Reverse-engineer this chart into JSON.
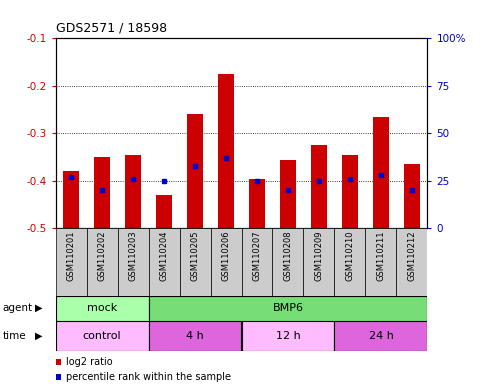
{
  "title": "GDS2571 / 18598",
  "samples": [
    "GSM110201",
    "GSM110202",
    "GSM110203",
    "GSM110204",
    "GSM110205",
    "GSM110206",
    "GSM110207",
    "GSM110208",
    "GSM110209",
    "GSM110210",
    "GSM110211",
    "GSM110212"
  ],
  "log2_values": [
    -0.38,
    -0.35,
    -0.345,
    -0.43,
    -0.26,
    -0.175,
    -0.395,
    -0.355,
    -0.325,
    -0.345,
    -0.265,
    -0.365
  ],
  "percentile_values": [
    27,
    20,
    26,
    25,
    33,
    37,
    25,
    20,
    25,
    26,
    28,
    20
  ],
  "bar_color": "#cc0000",
  "dot_color": "#0000cc",
  "ylim_left": [
    -0.5,
    -0.1
  ],
  "ylim_right": [
    0,
    100
  ],
  "yticks_left": [
    -0.5,
    -0.4,
    -0.3,
    -0.2,
    -0.1
  ],
  "yticks_right": [
    0,
    25,
    50,
    75,
    100
  ],
  "ytick_labels_left": [
    "-0.5",
    "-0.4",
    "-0.3",
    "-0.2",
    "-0.1"
  ],
  "ytick_labels_right": [
    "0",
    "25",
    "50",
    "75",
    "100%"
  ],
  "left_tick_color": "#cc0000",
  "right_tick_color": "#0000cc",
  "agent_row": {
    "label": "agent",
    "groups": [
      {
        "text": "mock",
        "start": 0,
        "end": 3,
        "color": "#aaffaa"
      },
      {
        "text": "BMP6",
        "start": 3,
        "end": 12,
        "color": "#77dd77"
      }
    ]
  },
  "time_row": {
    "label": "time",
    "groups": [
      {
        "text": "control",
        "start": 0,
        "end": 3,
        "color": "#ffbbff"
      },
      {
        "text": "4 h",
        "start": 3,
        "end": 6,
        "color": "#dd66dd"
      },
      {
        "text": "12 h",
        "start": 6,
        "end": 9,
        "color": "#ffbbff"
      },
      {
        "text": "24 h",
        "start": 9,
        "end": 12,
        "color": "#dd66dd"
      }
    ]
  },
  "legend": [
    {
      "label": "log2 ratio",
      "color": "#cc0000"
    },
    {
      "label": "percentile rank within the sample",
      "color": "#0000cc"
    }
  ],
  "bg_color": "#ffffff",
  "grid_color": "#000000",
  "tick_label_area_color": "#cccccc"
}
